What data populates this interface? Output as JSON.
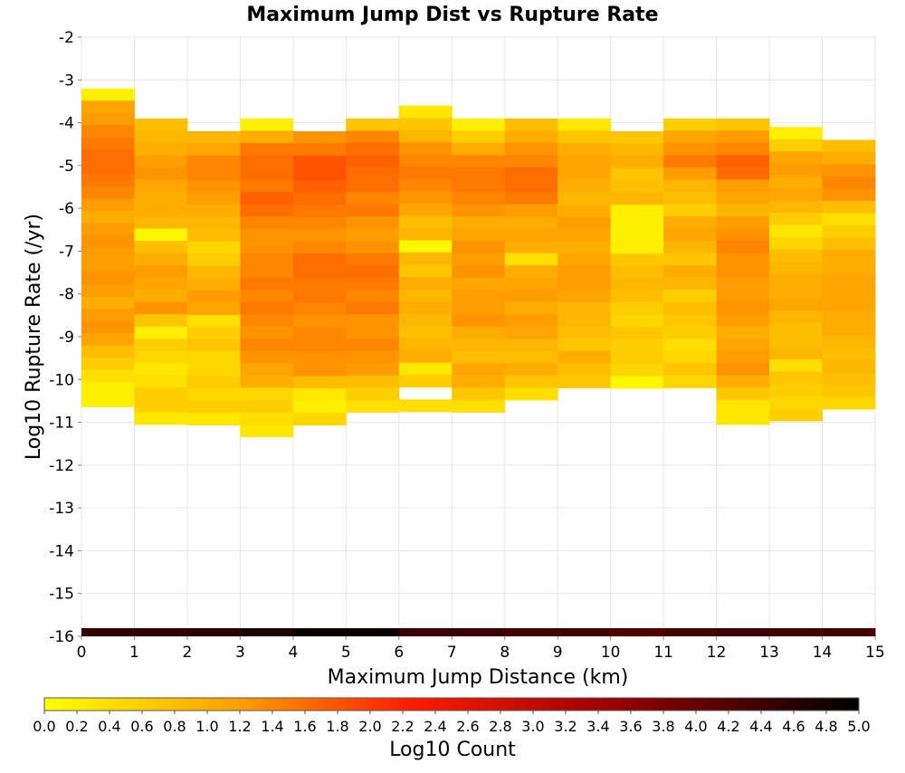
{
  "chart_data": {
    "type": "heatmap",
    "title": "Maximum Jump Dist vs Rupture Rate",
    "xlabel": "Maximum Jump Distance (km)",
    "ylabel": "Log10 Rupture Rate (/yr)",
    "colorbar_label": "Log10 Count",
    "xlim": [
      0,
      15
    ],
    "ylim": [
      -16,
      -2
    ],
    "x_ticks": [
      0,
      1,
      2,
      3,
      4,
      5,
      6,
      7,
      8,
      9,
      10,
      11,
      12,
      13,
      14,
      15
    ],
    "y_ticks": [
      -16,
      -15,
      -14,
      -13,
      -12,
      -11,
      -10,
      -9,
      -8,
      -7,
      -6,
      -5,
      -4,
      -3,
      -2
    ],
    "colorbar_ticks": [
      "0.0",
      "0.2",
      "0.4",
      "0.6",
      "0.8",
      "1.0",
      "1.2",
      "1.4",
      "1.6",
      "1.8",
      "2.0",
      "2.2",
      "2.4",
      "2.6",
      "2.8",
      "3.0",
      "3.2",
      "3.4",
      "3.6",
      "3.8",
      "4.0",
      "4.2",
      "4.4",
      "4.6",
      "4.8",
      "5.0"
    ],
    "colorbar_range": [
      0,
      5
    ],
    "colormap": [
      "#ffff00",
      "#ff9900",
      "#ff0000",
      "#990000",
      "#000000"
    ],
    "x_bin_width": 1,
    "y_bin_height": 0.286,
    "columns": [
      {
        "x": 0,
        "y_top": -3.2,
        "cells": [
          0.2,
          1.1,
          1.2,
          1.4,
          1.5,
          1.6,
          1.6,
          1.5,
          1.4,
          1.2,
          1.0,
          1.2,
          1.3,
          1.2,
          1.2,
          1.3,
          1.2,
          1.0,
          1.2,
          1.3,
          1.1,
          0.8,
          0.6,
          0.4,
          0.2,
          0.2
        ]
      },
      {
        "x": 1,
        "y_top": -3.9,
        "cells": [
          0.8,
          0.9,
          1.0,
          1.2,
          1.3,
          1.1,
          1.0,
          1.0,
          0.9,
          0.1,
          0.8,
          1.0,
          1.2,
          1.1,
          1.0,
          1.3,
          0.7,
          0.2,
          0.6,
          0.5,
          0.3,
          0.4,
          0.6,
          0.6,
          0.3
        ]
      },
      {
        "x": 2,
        "y_top": -4.2,
        "cells": [
          0.9,
          1.1,
          1.4,
          1.4,
          1.3,
          1.2,
          1.0,
          0.9,
          0.8,
          0.5,
          0.6,
          0.9,
          1.0,
          1.2,
          1.1,
          0.4,
          0.6,
          0.7,
          0.5,
          0.5,
          0.6,
          0.5,
          0.6,
          0.3
        ]
      },
      {
        "x": 3,
        "y_top": -3.9,
        "cells": [
          0.2,
          1.0,
          1.5,
          1.6,
          1.6,
          1.5,
          1.7,
          1.6,
          1.4,
          1.3,
          1.3,
          1.4,
          1.4,
          1.5,
          1.4,
          1.5,
          1.4,
          1.3,
          1.4,
          1.3,
          1.1,
          1.0,
          0.5,
          0.6,
          0.4,
          0.3
        ]
      },
      {
        "x": 4,
        "y_top": -4.2,
        "cells": [
          1.3,
          1.5,
          1.8,
          1.8,
          1.7,
          1.6,
          1.5,
          1.4,
          1.3,
          1.4,
          1.6,
          1.6,
          1.5,
          1.5,
          1.4,
          1.3,
          1.4,
          1.4,
          1.3,
          1.3,
          0.8,
          0.3,
          0.2,
          0.5
        ]
      },
      {
        "x": 5,
        "y_top": -3.9,
        "cells": [
          0.7,
          1.4,
          1.6,
          1.7,
          1.6,
          1.6,
          1.4,
          1.5,
          1.3,
          1.2,
          1.3,
          1.5,
          1.6,
          1.5,
          1.4,
          1.5,
          1.3,
          1.3,
          1.4,
          1.3,
          1.2,
          0.8,
          0.6,
          0.4
        ]
      },
      {
        "x": 6,
        "y_top": -3.6,
        "cells": [
          0.3,
          0.7,
          0.9,
          1.3,
          1.4,
          1.5,
          1.4,
          1.3,
          1.1,
          0.8,
          0.9,
          0.1,
          0.9,
          0.7,
          1.0,
          0.9,
          1.0,
          0.9,
          0.8,
          0.9,
          1.0,
          0.3,
          0.6,
          null,
          0.4
        ]
      },
      {
        "x": 7,
        "y_top": -3.9,
        "cells": [
          0.2,
          0.6,
          1.0,
          1.4,
          1.5,
          1.5,
          1.4,
          1.3,
          1.0,
          1.1,
          1.3,
          1.2,
          1.3,
          1.1,
          1.2,
          1.2,
          1.3,
          1.0,
          0.9,
          0.8,
          1.1,
          1.0,
          0.7,
          0.4
        ]
      },
      {
        "x": 8,
        "y_top": -3.9,
        "cells": [
          0.8,
          1.0,
          1.3,
          1.4,
          1.6,
          1.6,
          1.5,
          1.2,
          1.0,
          1.1,
          1.0,
          0.4,
          1.0,
          1.1,
          1.2,
          1.0,
          1.2,
          1.1,
          0.9,
          0.8,
          1.0,
          0.7,
          0.4
        ]
      },
      {
        "x": 9,
        "y_top": -3.9,
        "cells": [
          0.3,
          0.7,
          1.0,
          1.1,
          1.1,
          1.0,
          0.9,
          1.0,
          1.2,
          1.1,
          1.0,
          1.1,
          1.2,
          1.2,
          1.1,
          0.9,
          0.9,
          0.8,
          0.7,
          1.0,
          0.8,
          0.7
        ]
      },
      {
        "x": 10,
        "y_top": -4.2,
        "cells": [
          0.7,
          0.9,
          1.0,
          0.7,
          0.8,
          0.9,
          0.2,
          0.2,
          0.2,
          0.2,
          0.7,
          0.8,
          0.9,
          0.8,
          0.6,
          0.5,
          0.7,
          0.6,
          0.6,
          0.5,
          0.1
        ]
      },
      {
        "x": 11,
        "y_top": -3.9,
        "cells": [
          0.6,
          1.1,
          1.3,
          1.5,
          1.2,
          0.9,
          0.8,
          0.6,
          1.0,
          1.1,
          0.9,
          0.7,
          1.0,
          0.9,
          0.6,
          0.8,
          0.7,
          0.6,
          0.4,
          0.5,
          0.7,
          0.5
        ]
      },
      {
        "x": 12,
        "y_top": -3.9,
        "cells": [
          0.7,
          1.2,
          1.4,
          1.7,
          1.6,
          1.2,
          1.1,
          0.9,
          1.2,
          1.3,
          1.4,
          1.3,
          1.3,
          1.2,
          1.2,
          1.3,
          1.2,
          1.0,
          1.1,
          1.2,
          1.3,
          1.0,
          0.7,
          0.3,
          0.3
        ]
      },
      {
        "x": 13,
        "y_top": -4.1,
        "cells": [
          0.2,
          0.6,
          1.1,
          1.2,
          1.0,
          1.1,
          0.9,
          0.6,
          0.3,
          0.5,
          0.8,
          0.9,
          1.0,
          1.0,
          1.1,
          0.9,
          0.8,
          0.8,
          0.9,
          0.4,
          0.7,
          0.6,
          0.5,
          0.6
        ]
      },
      {
        "x": 14,
        "y_top": -4.4,
        "cells": [
          0.8,
          1.0,
          1.3,
          1.4,
          1.3,
          0.8,
          0.4,
          0.6,
          0.8,
          1.0,
          1.0,
          1.1,
          1.1,
          1.1,
          1.0,
          1.0,
          0.9,
          0.8,
          0.9,
          0.8,
          0.7,
          0.5
        ]
      }
    ],
    "bottom_strip": {
      "y": -16,
      "values": [
        4.5,
        4.5,
        4.6,
        4.7,
        4.9,
        4.9,
        4.4,
        4.4,
        4.3,
        4.3,
        4.2,
        4.3,
        4.4,
        4.3,
        4.3
      ]
    }
  }
}
